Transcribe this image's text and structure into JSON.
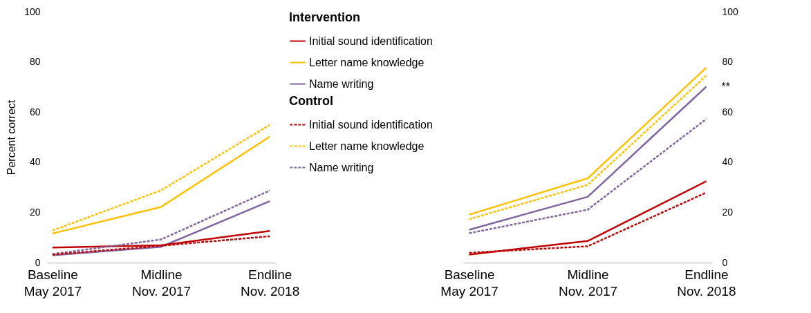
{
  "chart_data": [
    {
      "type": "line",
      "categories": [
        "Baseline May 2017",
        "Midline Nov. 2017",
        "Endline Nov. 2018"
      ],
      "ylabel": "Percent correct",
      "ylim": [
        0,
        100
      ],
      "yticks": [
        0,
        20,
        40,
        60,
        80,
        100
      ],
      "legend": "right",
      "legend_title": "Intervention",
      "annotations": [
        "Control"
      ],
      "series": [
        {
          "name": "Initial sound identification",
          "color": "#c00000",
          "line_style": "solid",
          "values": [
            6.0,
            6.9,
            12.6
          ]
        },
        {
          "name": "Letter name knowledge",
          "color": "#ffc000",
          "line_style": "solid",
          "values": [
            11.6,
            22.2,
            50.2
          ]
        },
        {
          "name": "Name writing",
          "color": "#8064a2",
          "line_style": "solid",
          "values": [
            2.9,
            6.3,
            24.5
          ]
        },
        {
          "name": "Initial sound identification",
          "color": "#c00000",
          "line_style": "dashed",
          "values": [
            3.2,
            6.7,
            10.5
          ]
        },
        {
          "name": "Letter name knowledge",
          "color": "#ffc000",
          "line_style": "dashed",
          "values": [
            12.8,
            28.8,
            54.9
          ]
        },
        {
          "name": "Name writing",
          "color": "#8064a2",
          "line_style": "dashed",
          "values": [
            3.4,
            9.2,
            28.7
          ]
        }
      ]
    },
    {
      "type": "line",
      "categories": [
        "Baseline May 2017",
        "Midline Nov. 2017",
        "Endline Nov. 2018"
      ],
      "y2lim": [
        0,
        100
      ],
      "y2ticks": [
        0,
        20,
        40,
        60,
        80,
        100
      ],
      "annotations": [
        "**"
      ],
      "series": [
        {
          "color": "#c00000",
          "line_style": "solid",
          "axis": "y2",
          "values": [
            3.2,
            8.6,
            32.4
          ]
        },
        {
          "color": "#ffc000",
          "line_style": "solid",
          "axis": "y2",
          "values": [
            19.1,
            33.6,
            77.7
          ]
        },
        {
          "color": "#8064a2",
          "line_style": "solid",
          "axis": "y2",
          "values": [
            13.1,
            26.2,
            70.1
          ]
        },
        {
          "color": "#c00000",
          "line_style": "dashed",
          "axis": "y2",
          "values": [
            3.9,
            6.5,
            27.9
          ]
        },
        {
          "color": "#ffc000",
          "line_style": "dashed",
          "axis": "y2",
          "values": [
            17.3,
            31.0,
            74.5
          ]
        },
        {
          "color": "#8064a2",
          "line_style": "dashed",
          "axis": "y2",
          "values": [
            11.7,
            21.1,
            57.2
          ]
        }
      ]
    }
  ]
}
